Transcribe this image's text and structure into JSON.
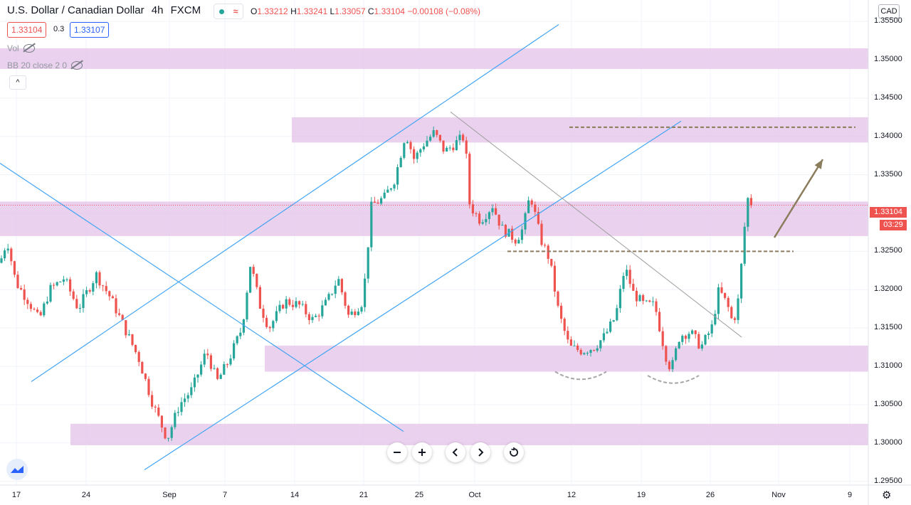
{
  "header": {
    "symbol_title": "U.S. Dollar / Canadian Dollar",
    "interval": "4h",
    "source": "FXCM",
    "ohlc": {
      "o_label": "O",
      "o": "1.33212",
      "h_label": "H",
      "h": "1.33241",
      "l_label": "L",
      "l": "1.33057",
      "c_label": "C",
      "c": "1.33104",
      "change": "−0.00108 (−0.08%)"
    },
    "status_wave": "≈"
  },
  "trade": {
    "sell_price": "1.33104",
    "spread": "0.3",
    "buy_price": "1.33107"
  },
  "indicators": [
    {
      "label": "Vol"
    },
    {
      "label": "BB 20 close 2 0"
    }
  ],
  "collapse_icon": "^",
  "currency_button": "CAD",
  "last_price_label": "1.33104",
  "countdown": "03:29",
  "colors": {
    "up": "#26a69a",
    "down": "#ef5350",
    "zone": "#e1bee7",
    "trendline": "#42a5f5",
    "gray_line": "#9e9e9e",
    "dashed": "#8b7d5b",
    "arrow": "#8b7d5b",
    "last_price_line": "#ef5350"
  },
  "nav_icons": [
    "minus-icon",
    "plus-icon",
    "chevron-left-icon",
    "chevron-right-icon",
    "reset-icon"
  ],
  "chart_data": {
    "type": "candlestick",
    "price_axis_ticks": [
      "1.35500",
      "1.35000",
      "1.34500",
      "1.34000",
      "1.33500",
      "1.33000",
      "1.32500",
      "1.32000",
      "1.31500",
      "1.31000",
      "1.30500",
      "1.30000",
      "1.29500"
    ],
    "time_axis_ticks": [
      "17",
      "24",
      "Sep",
      "7",
      "14",
      "21",
      "25",
      "Oct",
      "12",
      "19",
      "26",
      "Nov",
      "9"
    ],
    "ylim": [
      1.2945,
      1.3578
    ],
    "path_points": [
      [
        0,
        1.3235
      ],
      [
        10,
        1.3265
      ],
      [
        22,
        1.321
      ],
      [
        40,
        1.3185
      ],
      [
        55,
        1.316
      ],
      [
        70,
        1.32
      ],
      [
        90,
        1.3215
      ],
      [
        110,
        1.3175
      ],
      [
        135,
        1.322
      ],
      [
        155,
        1.319
      ],
      [
        175,
        1.315
      ],
      [
        195,
        1.311
      ],
      [
        215,
        1.305
      ],
      [
        235,
        1.3005
      ],
      [
        252,
        1.305
      ],
      [
        270,
        1.307
      ],
      [
        290,
        1.312
      ],
      [
        305,
        1.308
      ],
      [
        320,
        1.3105
      ],
      [
        340,
        1.315
      ],
      [
        352,
        1.3235
      ],
      [
        365,
        1.318
      ],
      [
        378,
        1.315
      ],
      [
        400,
        1.3185
      ],
      [
        420,
        1.318
      ],
      [
        440,
        1.316
      ],
      [
        460,
        1.3185
      ],
      [
        475,
        1.3215
      ],
      [
        490,
        1.3165
      ],
      [
        510,
        1.3185
      ],
      [
        522,
        1.331
      ],
      [
        540,
        1.332
      ],
      [
        555,
        1.3345
      ],
      [
        570,
        1.3405
      ],
      [
        582,
        1.337
      ],
      [
        595,
        1.339
      ],
      [
        610,
        1.3405
      ],
      [
        625,
        1.338
      ],
      [
        645,
        1.3395
      ],
      [
        653,
        1.34
      ],
      [
        660,
        1.331
      ],
      [
        675,
        1.329
      ],
      [
        692,
        1.331
      ],
      [
        705,
        1.328
      ],
      [
        725,
        1.3265
      ],
      [
        735,
        1.328
      ],
      [
        745,
        1.3325
      ],
      [
        760,
        1.3265
      ],
      [
        772,
        1.324
      ],
      [
        785,
        1.317
      ],
      [
        800,
        1.3125
      ],
      [
        818,
        1.312
      ],
      [
        835,
        1.3125
      ],
      [
        850,
        1.314
      ],
      [
        865,
        1.3165
      ],
      [
        878,
        1.323
      ],
      [
        890,
        1.3195
      ],
      [
        905,
        1.318
      ],
      [
        920,
        1.318
      ],
      [
        935,
        1.3115
      ],
      [
        943,
        1.3095
      ],
      [
        955,
        1.314
      ],
      [
        970,
        1.3145
      ],
      [
        985,
        1.3125
      ],
      [
        1000,
        1.315
      ],
      [
        1010,
        1.32
      ],
      [
        1022,
        1.318
      ],
      [
        1030,
        1.3155
      ],
      [
        1038,
        1.319
      ],
      [
        1045,
        1.327
      ],
      [
        1050,
        1.332
      ],
      [
        1056,
        1.331
      ]
    ],
    "zones": [
      {
        "from_x": 0,
        "to_x": 1220,
        "low": 1.3488,
        "high": 1.3515
      },
      {
        "from_x": 410,
        "to_x": 1220,
        "low": 1.3392,
        "high": 1.3425
      },
      {
        "from_x": 0,
        "to_x": 1220,
        "low": 1.327,
        "high": 1.3315
      },
      {
        "from_x": 372,
        "to_x": 1220,
        "low": 1.3093,
        "high": 1.3127
      },
      {
        "from_x": 99,
        "to_x": 1220,
        "low": 1.2997,
        "high": 1.3025
      }
    ],
    "trendlines": [
      {
        "p1": [
          44,
          1.308
        ],
        "p2": [
          785,
          1.3546
        ],
        "style": "blue"
      },
      {
        "p1": [
          203,
          1.2965
        ],
        "p2": [
          957,
          1.342
        ],
        "style": "blue"
      },
      {
        "p1": [
          0,
          1.3365
        ],
        "p2": [
          567,
          1.3015
        ],
        "style": "blue"
      },
      {
        "p1": [
          633,
          1.3432
        ],
        "p2": [
          1042,
          1.3138
        ],
        "style": "gray"
      }
    ],
    "dashed_levels": [
      {
        "from_x": 800,
        "to_x": 1202,
        "price": 1.3412
      },
      {
        "from_x": 713,
        "to_x": 1115,
        "price": 1.325
      }
    ],
    "arrow": {
      "p1": [
        1088,
        1.3268
      ],
      "p2": [
        1156,
        1.337
      ]
    },
    "curves": [
      {
        "from_x": 780,
        "to_x": 852,
        "price": 1.3093,
        "depth": 0.001
      },
      {
        "from_x": 910,
        "to_x": 982,
        "price": 1.3088,
        "depth": 0.001
      }
    ],
    "last_price": 1.33104
  }
}
